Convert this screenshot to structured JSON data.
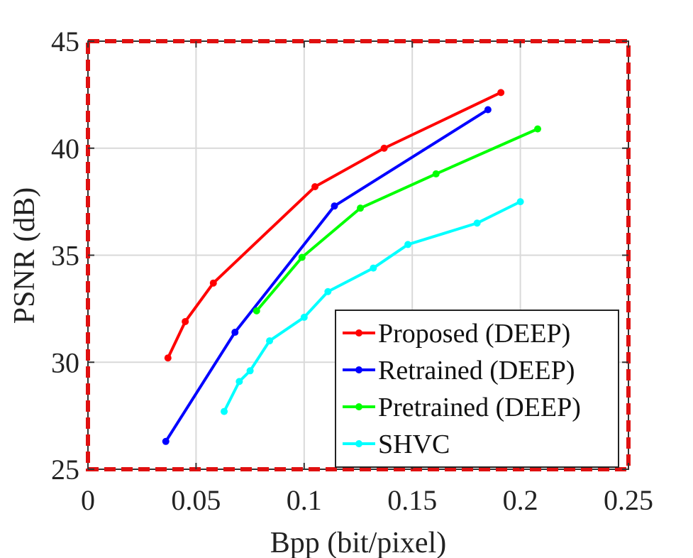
{
  "chart_data": {
    "type": "line",
    "title": "",
    "xlabel": "Bpp (bit/pixel)",
    "ylabel": "PSNR (dB)",
    "xlim": [
      0,
      0.25
    ],
    "ylim": [
      25,
      45
    ],
    "xticks": [
      0,
      0.05,
      0.1,
      0.15,
      0.2,
      0.25
    ],
    "xtick_labels": [
      "0",
      "0.05",
      "0.1",
      "0.15",
      "0.2",
      "0.25"
    ],
    "yticks": [
      25,
      30,
      35,
      40,
      45
    ],
    "ytick_labels": [
      "25",
      "30",
      "35",
      "40",
      "45"
    ],
    "grid": true,
    "legend_position": "bottom-right",
    "frame_color": "#e01010",
    "series": [
      {
        "name": "Proposed (DEEP)",
        "color": "#ff0000",
        "x": [
          0.037,
          0.045,
          0.058,
          0.105,
          0.137,
          0.191
        ],
        "y": [
          30.2,
          31.9,
          33.7,
          38.2,
          40.0,
          42.6
        ]
      },
      {
        "name": "Retrained (DEEP)",
        "color": "#0000ff",
        "x": [
          0.036,
          0.068,
          0.114,
          0.185
        ],
        "y": [
          26.3,
          31.4,
          37.3,
          41.8
        ]
      },
      {
        "name": "Pretrained (DEEP)",
        "color": "#00ff00",
        "x": [
          0.078,
          0.099,
          0.126,
          0.161,
          0.208
        ],
        "y": [
          32.4,
          34.9,
          37.2,
          38.8,
          40.9
        ]
      },
      {
        "name": "SHVC",
        "color": "#00ffff",
        "x": [
          0.063,
          0.07,
          0.075,
          0.084,
          0.1,
          0.111,
          0.132,
          0.148,
          0.18,
          0.2
        ],
        "y": [
          27.7,
          29.1,
          29.6,
          31.0,
          32.1,
          33.3,
          34.4,
          35.5,
          36.5,
          37.5
        ]
      }
    ]
  }
}
